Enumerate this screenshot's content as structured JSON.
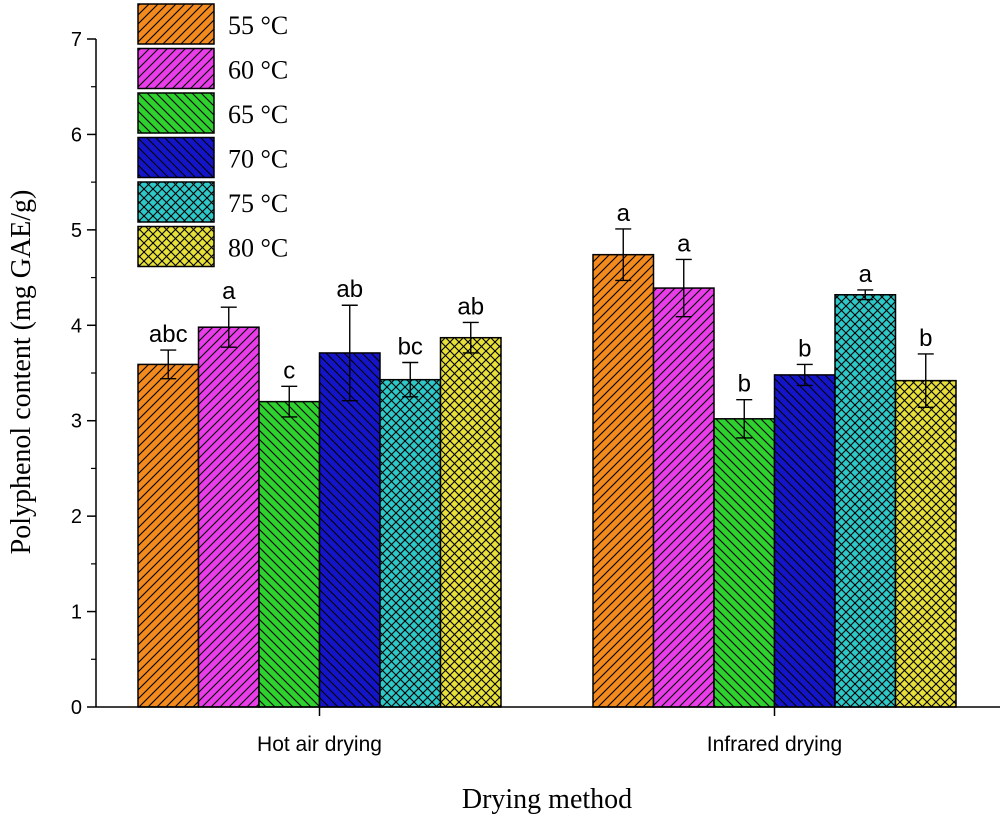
{
  "chart_data": {
    "type": "bar",
    "title": "",
    "xlabel": "Drying method",
    "ylabel": "Polyphenol content (mg GAE/g)",
    "ylim": [
      0,
      7
    ],
    "yticks": [
      "0",
      "1",
      "2",
      "3",
      "4",
      "5",
      "6",
      "7"
    ],
    "categories": [
      "Hot air drying",
      "Infrared drying"
    ],
    "series": [
      {
        "name": "55 °C",
        "color": "#f28a1e",
        "values": [
          3.59,
          4.74
        ],
        "errors": [
          0.15,
          0.27
        ],
        "labels": [
          "abc",
          "a"
        ]
      },
      {
        "name": "60 °C",
        "color": "#e83de8",
        "values": [
          3.98,
          4.39
        ],
        "errors": [
          0.21,
          0.3
        ],
        "labels": [
          "a",
          "a"
        ]
      },
      {
        "name": "65 °C",
        "color": "#2fd12f",
        "values": [
          3.2,
          3.02
        ],
        "errors": [
          0.16,
          0.2
        ],
        "labels": [
          "c",
          "b"
        ]
      },
      {
        "name": "70 °C",
        "color": "#1414c8",
        "values": [
          3.71,
          3.48
        ],
        "errors": [
          0.5,
          0.11
        ],
        "labels": [
          "ab",
          "b"
        ]
      },
      {
        "name": "75 °C",
        "color": "#2ec8c8",
        "values": [
          3.43,
          4.32
        ],
        "errors": [
          0.18,
          0.05
        ],
        "labels": [
          "bc",
          "a"
        ]
      },
      {
        "name": "80 °C",
        "color": "#e8e03a",
        "values": [
          3.87,
          3.42
        ],
        "errors": [
          0.16,
          0.28
        ],
        "labels": [
          "ab",
          "b"
        ]
      }
    ],
    "legend_position": "top-left",
    "grid": false
  }
}
